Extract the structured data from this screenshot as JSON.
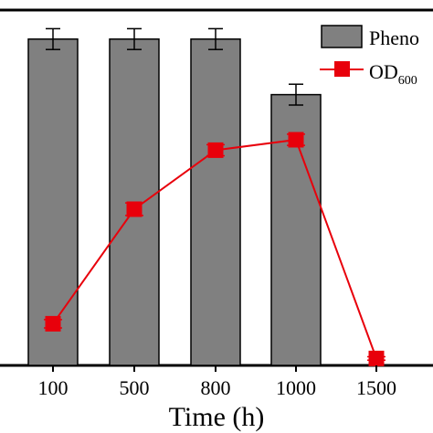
{
  "chart_data": {
    "type": "bar",
    "categories": [
      "100",
      "500",
      "800",
      "1000",
      "1500"
    ],
    "xlabel": "Time (h)",
    "series": [
      {
        "name": "Pheno",
        "kind": "bar",
        "color": "#808080",
        "values": [
          94,
          94,
          94,
          78,
          0
        ],
        "errors": [
          3,
          3,
          3,
          3,
          0
        ]
      },
      {
        "name": "OD600",
        "name_main": "OD",
        "name_sub": "600",
        "kind": "line",
        "color": "#e8000b",
        "values": [
          12,
          45,
          62,
          65,
          2
        ],
        "errors": [
          1.2,
          1.8,
          1.6,
          1.6,
          0.5
        ]
      }
    ],
    "ylim": [
      0,
      100
    ],
    "legend": "top-right",
    "grid": false
  }
}
